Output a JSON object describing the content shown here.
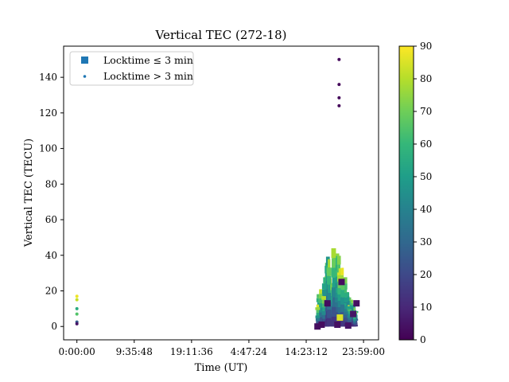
{
  "chart_data": {
    "type": "scatter",
    "title": "Vertical TEC (272-18)",
    "xlabel": "Time (UT)",
    "ylabel": "Vertical TEC (TECU)",
    "x_ticks": [
      "0:00:00",
      "9:35:48",
      "19:11:36",
      "4:47:24",
      "14:23:12",
      "23:59:00"
    ],
    "x_tick_seconds": [
      0,
      34548,
      69096,
      103644,
      138192,
      172740
    ],
    "xlim_seconds": [
      -8000,
      181800
    ],
    "y_ticks": [
      "0",
      "20",
      "40",
      "60",
      "80",
      "100",
      "120",
      "140"
    ],
    "y_tick_values": [
      0,
      20,
      40,
      60,
      80,
      100,
      120,
      140
    ],
    "ylim": [
      -7.5,
      157.5
    ],
    "colorbar": {
      "colormap": "viridis",
      "min": 0,
      "max": 90,
      "ticks": [
        "0",
        "10",
        "20",
        "30",
        "40",
        "50",
        "60",
        "70",
        "80",
        "90"
      ],
      "tick_values": [
        0,
        10,
        20,
        30,
        40,
        50,
        60,
        70,
        80,
        90
      ]
    },
    "legend": {
      "placement": "upper-left",
      "entries": [
        {
          "label": "Locktime ≤ 3 min",
          "marker": "square"
        },
        {
          "label": "Locktime > 3 min",
          "marker": "dot"
        }
      ]
    },
    "series": [
      {
        "name": "Locktime > 3 min",
        "points": [
          {
            "x": 0,
            "y": 17,
            "c": 88
          },
          {
            "x": 0,
            "y": 15,
            "c": 82
          },
          {
            "x": 0,
            "y": 10,
            "c": 55
          },
          {
            "x": 0,
            "y": 7,
            "c": 65
          },
          {
            "x": 0,
            "y": 2.5,
            "c": 25
          },
          {
            "x": 0,
            "y": 1.5,
            "c": 5
          },
          {
            "x": 158000,
            "y": 150,
            "c": 2
          },
          {
            "x": 158000,
            "y": 136,
            "c": 2
          },
          {
            "x": 158000,
            "y": 128.5,
            "c": 2
          },
          {
            "x": 158000,
            "y": 124,
            "c": 2
          }
        ]
      },
      {
        "name": "Locktime ≤ 3 min",
        "points": [
          {
            "x": 145000,
            "y": 0,
            "c": 3
          },
          {
            "x": 147500,
            "y": 1,
            "c": 3
          },
          {
            "x": 151000,
            "y": 13,
            "c": 3
          },
          {
            "x": 157000,
            "y": 1,
            "c": 4
          },
          {
            "x": 158500,
            "y": 5,
            "c": 85
          },
          {
            "x": 159500,
            "y": 25,
            "c": 3
          },
          {
            "x": 163500,
            "y": 0.5,
            "c": 5
          },
          {
            "x": 166500,
            "y": 7,
            "c": 5
          },
          {
            "x": 168500,
            "y": 13,
            "c": 4
          }
        ]
      }
    ],
    "ridges": [
      {
        "x0": 145000,
        "x1": 168500,
        "peak_x": 154500,
        "peak_y": 50,
        "c_low": 5,
        "c_high": 88,
        "description": "dense overlapping satellite tracks"
      }
    ]
  }
}
